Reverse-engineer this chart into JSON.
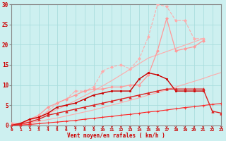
{
  "title": "",
  "xlabel": "Vent moyen/en rafales ( km/h )",
  "ylabel": "",
  "background_color": "#cdf0f0",
  "grid_color": "#aadddd",
  "x": [
    0,
    1,
    2,
    3,
    4,
    5,
    6,
    7,
    8,
    9,
    10,
    11,
    12,
    13,
    14,
    15,
    16,
    17,
    18,
    19,
    20,
    21,
    22,
    23
  ],
  "series": [
    {
      "y": [
        0.0,
        0.3,
        0.6,
        1.0,
        1.4,
        1.8,
        2.3,
        2.8,
        3.3,
        3.8,
        4.4,
        5.0,
        5.6,
        6.2,
        6.8,
        7.5,
        8.1,
        8.8,
        9.5,
        10.2,
        10.9,
        11.6,
        12.4,
        13.1
      ],
      "color": "#ffaaaa",
      "lw": 0.8,
      "marker": null,
      "linestyle": "-"
    },
    {
      "y": [
        0.0,
        0.5,
        1.2,
        2.0,
        2.9,
        3.9,
        5.0,
        6.1,
        7.3,
        8.5,
        9.8,
        11.1,
        12.5,
        13.9,
        15.3,
        16.7,
        17.5,
        18.3,
        19.1,
        19.9,
        20.7,
        21.5,
        null,
        null
      ],
      "color": "#ffaaaa",
      "lw": 0.8,
      "marker": null,
      "linestyle": "-"
    },
    {
      "y": [
        0.5,
        0.3,
        0.5,
        2.0,
        3.5,
        5.5,
        6.5,
        8.5,
        8.5,
        9.5,
        13.5,
        14.5,
        15.0,
        14.0,
        16.5,
        22.0,
        30.0,
        29.5,
        26.0,
        26.0,
        21.5,
        21.5,
        null,
        null
      ],
      "color": "#ffaaaa",
      "lw": 0.8,
      "marker": "D",
      "markersize": 2.0,
      "linestyle": "--"
    },
    {
      "y": [
        0.5,
        0.3,
        1.5,
        2.5,
        4.5,
        5.5,
        6.5,
        7.5,
        8.5,
        9.0,
        9.0,
        9.5,
        9.5,
        10.0,
        10.0,
        12.5,
        18.5,
        26.5,
        18.5,
        19.0,
        19.5,
        21.0,
        null,
        null
      ],
      "color": "#ff9999",
      "lw": 0.9,
      "marker": "D",
      "markersize": 2.0,
      "linestyle": "-"
    },
    {
      "y": [
        0.0,
        0.5,
        1.5,
        2.0,
        3.0,
        4.5,
        5.0,
        5.5,
        6.5,
        7.5,
        8.0,
        8.5,
        8.5,
        8.5,
        11.5,
        13.0,
        12.5,
        11.5,
        8.5,
        8.5,
        8.5,
        8.5,
        null,
        null
      ],
      "color": "#cc0000",
      "lw": 1.0,
      "marker": "s",
      "markersize": 2.0,
      "linestyle": "-"
    },
    {
      "y": [
        0.0,
        0.3,
        0.8,
        1.5,
        2.5,
        3.0,
        3.5,
        4.0,
        4.5,
        5.0,
        5.5,
        6.0,
        6.5,
        7.0,
        7.5,
        8.0,
        8.5,
        9.0,
        9.0,
        9.0,
        9.0,
        9.0,
        3.5,
        3.0
      ],
      "color": "#dd2222",
      "lw": 1.0,
      "marker": "^",
      "markersize": 2.5,
      "linestyle": "-"
    },
    {
      "y": [
        0.0,
        0.1,
        0.2,
        0.4,
        0.6,
        0.8,
        1.0,
        1.2,
        1.5,
        1.7,
        2.0,
        2.2,
        2.5,
        2.7,
        3.0,
        3.3,
        3.5,
        3.8,
        4.1,
        4.4,
        4.6,
        4.9,
        5.2,
        5.4
      ],
      "color": "#ff2222",
      "lw": 0.8,
      "marker": "+",
      "markersize": 2.5,
      "linestyle": "-"
    }
  ],
  "xlim": [
    0,
    23
  ],
  "ylim": [
    0,
    30
  ],
  "yticks": [
    0,
    5,
    10,
    15,
    20,
    25,
    30
  ],
  "xticks": [
    0,
    1,
    2,
    3,
    4,
    5,
    6,
    7,
    8,
    9,
    10,
    11,
    12,
    13,
    14,
    15,
    16,
    17,
    18,
    19,
    20,
    21,
    22,
    23
  ],
  "tick_color": "#cc0000",
  "label_color": "#cc0000",
  "axis_color": "#888888",
  "arrow_color": "#cc0000"
}
